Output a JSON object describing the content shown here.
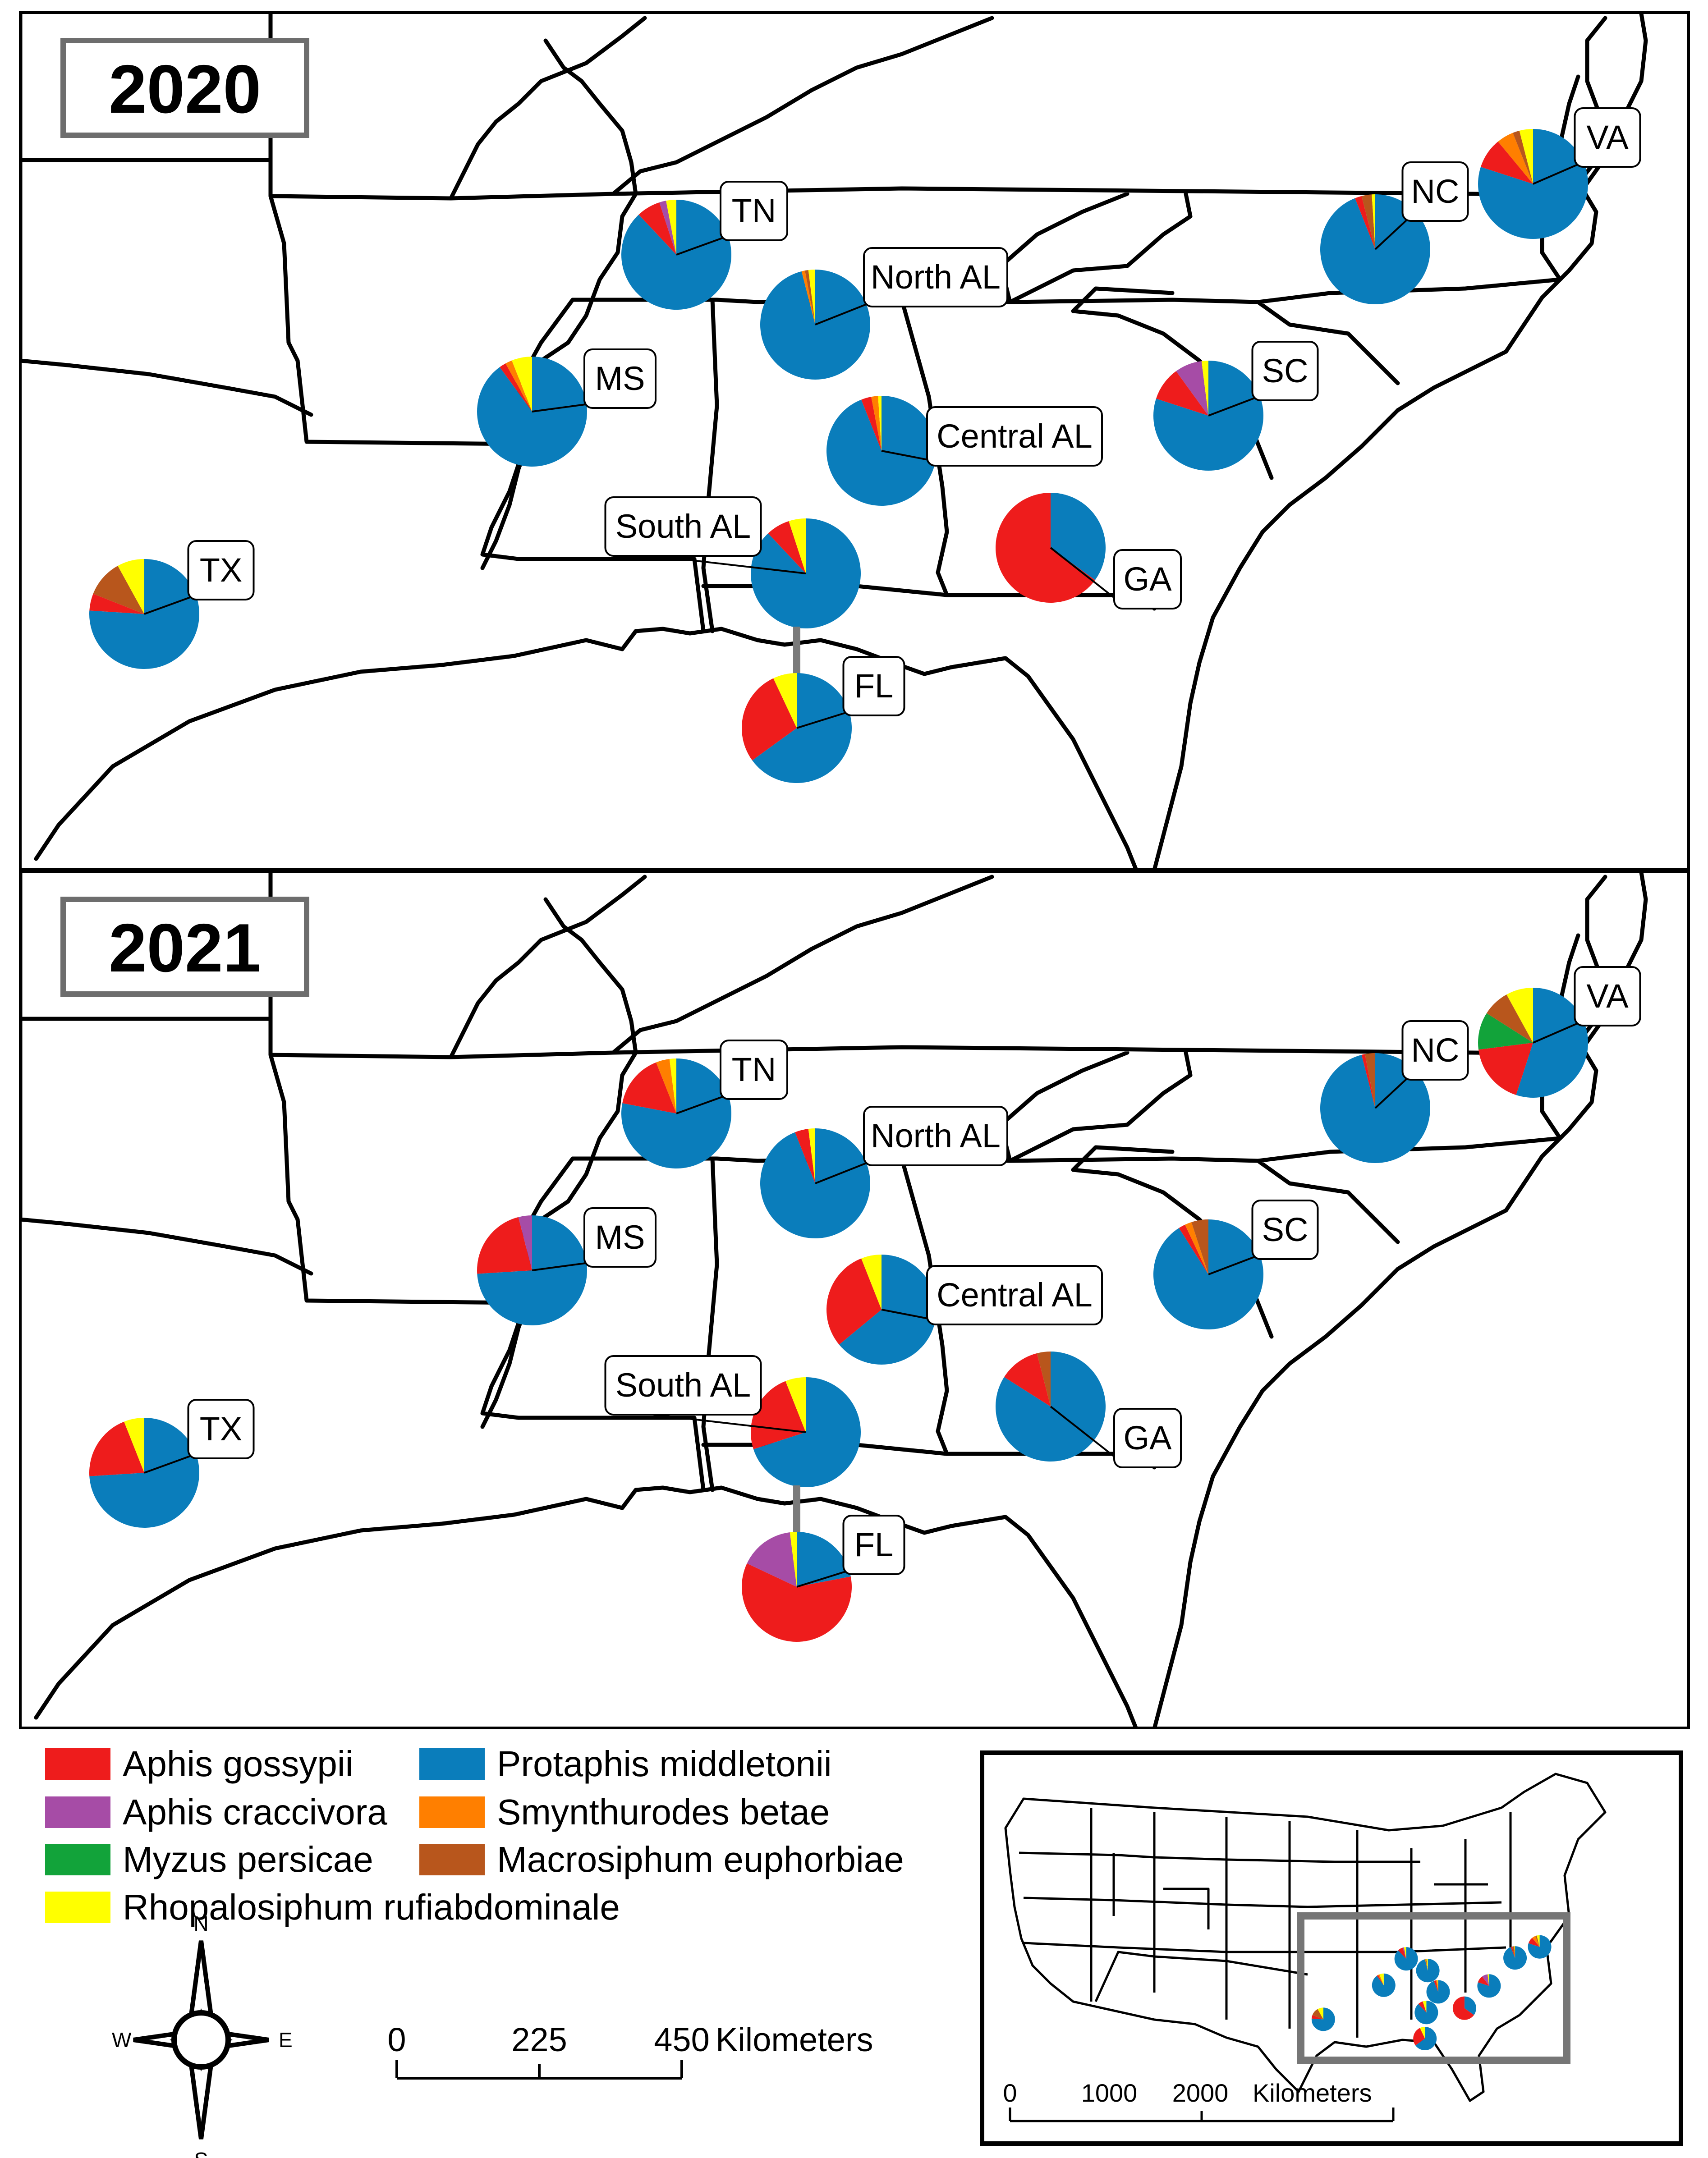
{
  "species_colors": {
    "Aphis gossypii": "#ee1c1c",
    "Protaphis middletonii": "#0a7dbb",
    "Aphis craccivora": "#a64ca6",
    "Smynthurodes betae": "#ff7f00",
    "Myzus persicae": "#12a33a",
    "Macrosiphum euphorbiae": "#b8561c",
    "Rhopalosiphum rufiabdominale": "#ffff00"
  },
  "legend": [
    {
      "label": "Aphis gossypii",
      "color": "#ee1c1c"
    },
    {
      "label": "Aphis craccivora",
      "color": "#a64ca6"
    },
    {
      "label": "Myzus persicae",
      "color": "#12a33a"
    },
    {
      "label": "Rhopalosiphum rufiabdominale",
      "color": "#ffff00"
    },
    {
      "label": "Protaphis middletonii",
      "color": "#0a7dbb"
    },
    {
      "label": "Smynthurodes betae",
      "color": "#ff7f00"
    },
    {
      "label": "Macrosiphum euphorbiae",
      "color": "#b8561c"
    }
  ],
  "panels": [
    {
      "year": "2020",
      "sites": [
        {
          "label": "TN",
          "shares": {
            "Protaphis middletonii": 88,
            "Aphis gossypii": 7,
            "Rhopalosiphum rufiabdominale": 3,
            "Aphis craccivora": 2
          }
        },
        {
          "label": "North AL",
          "shares": {
            "Protaphis middletonii": 96,
            "Rhopalosiphum rufiabdominale": 2,
            "Smynthurodes betae": 1,
            "Macrosiphum euphorbiae": 1
          }
        },
        {
          "label": "MS",
          "shares": {
            "Protaphis middletonii": 90,
            "Aphis gossypii": 2,
            "Smynthurodes betae": 2,
            "Rhopalosiphum rufiabdominale": 6
          }
        },
        {
          "label": "Central AL",
          "shares": {
            "Protaphis middletonii": 94,
            "Aphis gossypii": 3,
            "Smynthurodes betae": 2,
            "Rhopalosiphum rufiabdominale": 1
          }
        },
        {
          "label": "South AL",
          "shares": {
            "Protaphis middletonii": 88,
            "Aphis gossypii": 7,
            "Rhopalosiphum rufiabdominale": 5
          }
        },
        {
          "label": "TX",
          "shares": {
            "Protaphis middletonii": 76,
            "Aphis gossypii": 5,
            "Macrosiphum euphorbiae": 11,
            "Rhopalosiphum rufiabdominale": 8
          }
        },
        {
          "label": "GA",
          "shares": {
            "Aphis gossypii": 65,
            "Protaphis middletonii": 35
          }
        },
        {
          "label": "FL",
          "shares": {
            "Protaphis middletonii": 65,
            "Aphis gossypii": 28,
            "Rhopalosiphum rufiabdominale": 7
          }
        },
        {
          "label": "SC",
          "shares": {
            "Protaphis middletonii": 80,
            "Aphis gossypii": 10,
            "Rhopalosiphum rufiabdominale": 2,
            "Aphis craccivora": 8
          }
        },
        {
          "label": "NC",
          "shares": {
            "Protaphis middletonii": 94,
            "Aphis gossypii": 2,
            "Macrosiphum euphorbiae": 3,
            "Rhopalosiphum rufiabdominale": 1
          }
        },
        {
          "label": "VA",
          "shares": {
            "Protaphis middletonii": 80,
            "Aphis gossypii": 9,
            "Smynthurodes betae": 5,
            "Macrosiphum euphorbiae": 2,
            "Rhopalosiphum rufiabdominale": 4
          }
        }
      ]
    },
    {
      "year": "2021",
      "sites": [
        {
          "label": "TN",
          "shares": {
            "Protaphis middletonii": 78,
            "Aphis gossypii": 16,
            "Smynthurodes betae": 4,
            "Rhopalosiphum rufiabdominale": 2
          }
        },
        {
          "label": "North AL",
          "shares": {
            "Protaphis middletonii": 94,
            "Aphis gossypii": 4,
            "Rhopalosiphum rufiabdominale": 2
          }
        },
        {
          "label": "MS",
          "shares": {
            "Protaphis middletonii": 74,
            "Aphis gossypii": 22,
            "Aphis craccivora": 4
          }
        },
        {
          "label": "Central AL",
          "shares": {
            "Protaphis middletonii": 64,
            "Aphis gossypii": 30,
            "Rhopalosiphum rufiabdominale": 6
          }
        },
        {
          "label": "South AL",
          "shares": {
            "Protaphis middletonii": 70,
            "Aphis gossypii": 24,
            "Rhopalosiphum rufiabdominale": 6
          }
        },
        {
          "label": "TX",
          "shares": {
            "Protaphis middletonii": 74,
            "Aphis gossypii": 20,
            "Rhopalosiphum rufiabdominale": 6
          }
        },
        {
          "label": "GA",
          "shares": {
            "Protaphis middletonii": 84,
            "Aphis gossypii": 12,
            "Macrosiphum euphorbiae": 4
          }
        },
        {
          "label": "FL",
          "shares": {
            "Aphis gossypii": 60,
            "Protaphis middletonii": 22,
            "Aphis craccivora": 16,
            "Rhopalosiphum rufiabdominale": 2
          }
        },
        {
          "label": "SC",
          "shares": {
            "Protaphis middletonii": 91,
            "Aphis gossypii": 2,
            "Smynthurodes betae": 2,
            "Macrosiphum euphorbiae": 5
          }
        },
        {
          "label": "NC",
          "shares": {
            "Protaphis middletonii": 96,
            "Aphis gossypii": 1,
            "Macrosiphum euphorbiae": 3
          }
        },
        {
          "label": "VA",
          "shares": {
            "Protaphis middletonii": 55,
            "Aphis gossypii": 18,
            "Macrosiphum euphorbiae": 8,
            "Rhopalosiphum rufiabdominale": 8,
            "Myzus persicae": 11
          }
        }
      ]
    }
  ],
  "compass": {
    "n": "N",
    "s": "S",
    "e": "E",
    "w": "W"
  },
  "scale_bar": {
    "ticks": [
      "0",
      "225",
      "450"
    ],
    "unit": "Kilometers"
  },
  "inset": {
    "scale_ticks": [
      "0",
      "1000",
      "2000"
    ],
    "scale_unit": "Kilometers"
  }
}
